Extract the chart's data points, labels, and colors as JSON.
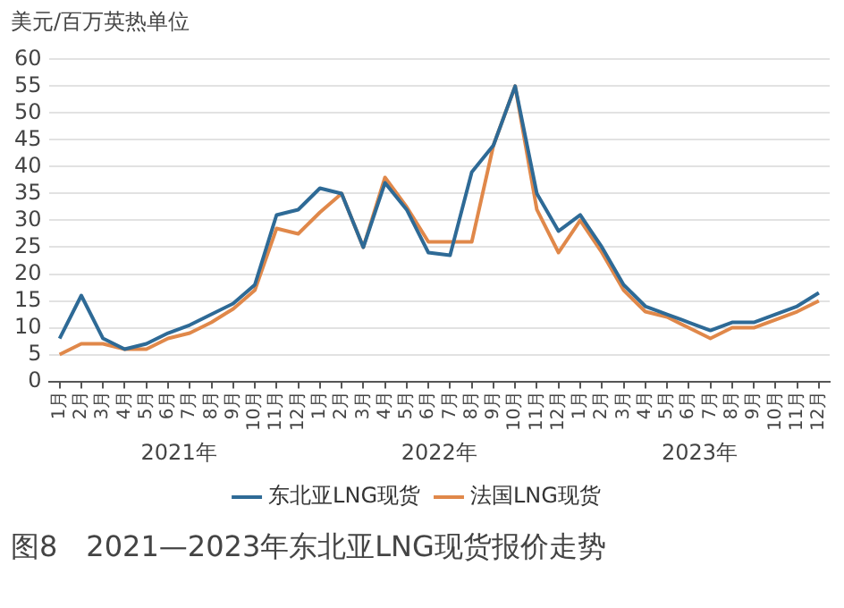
{
  "chart_data": {
    "type": "line",
    "title": "图8　2021—2023年东北亚LNG现货报价走势",
    "ylabel": "美元/百万英热单位",
    "categories": [
      "1月",
      "2月",
      "3月",
      "4月",
      "5月",
      "6月",
      "7月",
      "8月",
      "9月",
      "10月",
      "11月",
      "12月",
      "1月",
      "2月",
      "3月",
      "4月",
      "5月",
      "6月",
      "7月",
      "8月",
      "9月",
      "10月",
      "11月",
      "12月",
      "1月",
      "2月",
      "3月",
      "4月",
      "5月",
      "6月",
      "7月",
      "8月",
      "9月",
      "10月",
      "11月",
      "12月"
    ],
    "annotations": [
      "2021年",
      "2022年",
      "2023年"
    ],
    "series": [
      {
        "name": "东北亚LNG现货",
        "color": "#2e6a96",
        "values": [
          8,
          16,
          8,
          6,
          7,
          9,
          10.5,
          12.5,
          14.5,
          18,
          31,
          32,
          36,
          35,
          25,
          37,
          32,
          24,
          23.5,
          39,
          44,
          55,
          35,
          28,
          31,
          25,
          18,
          14,
          12.5,
          11,
          9.5,
          11,
          11,
          12.5,
          14,
          16.5
        ]
      },
      {
        "name": "法国LNG现货",
        "color": "#e0884a",
        "values": [
          5,
          7,
          7,
          6,
          6,
          8,
          9,
          11,
          13.5,
          17,
          28.5,
          27.5,
          31.5,
          35,
          25,
          38,
          32.5,
          26,
          26,
          26,
          44,
          55,
          32,
          24,
          30,
          24,
          17,
          13,
          12,
          10,
          8,
          10,
          10,
          11.5,
          13,
          15
        ]
      }
    ],
    "ylim": [
      0,
      60
    ],
    "yticks": [
      0,
      5,
      10,
      15,
      20,
      25,
      30,
      35,
      40,
      45,
      50,
      55,
      60
    ],
    "grid": "y",
    "legend": "bottom",
    "marker": "none",
    "line_style": "solid"
  }
}
